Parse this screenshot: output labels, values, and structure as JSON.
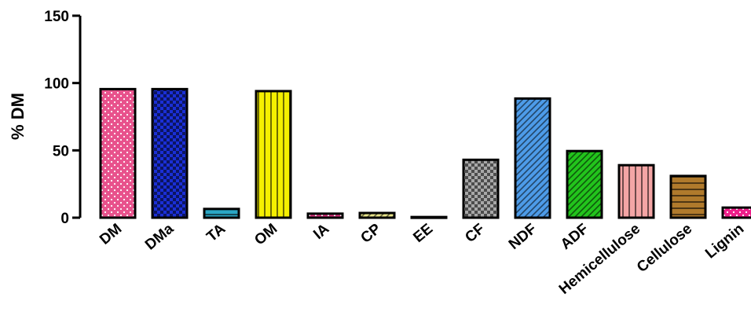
{
  "chart_data": {
    "type": "bar",
    "title": "",
    "xlabel": "",
    "ylabel": "% DM",
    "ylim": [
      0,
      150
    ],
    "yticks": [
      0,
      50,
      100,
      150
    ],
    "grid": false,
    "categories": [
      "DM",
      "DMa",
      "TA",
      "OM",
      "IA",
      "CP",
      "EE",
      "CF",
      "NDF",
      "ADF",
      "Hemicellulose",
      "Cellulose",
      "Lignin"
    ],
    "values": [
      95.5,
      95.5,
      6.5,
      94,
      3,
      3.5,
      0.5,
      43,
      88.5,
      49.5,
      39,
      31,
      7.5
    ],
    "colors": [
      "#e8528c",
      "#1a2fd6",
      "#2aa6c4",
      "#f5f000",
      "#d4307a",
      "#e8e48a",
      "#9a9a9a",
      "#a8a8a8",
      "#4d9be8",
      "#22c41c",
      "#f4a5a5",
      "#b07a2c",
      "#ee1f8a"
    ],
    "patterns": [
      "dots",
      "checker",
      "hstripes",
      "vstripes",
      "dots",
      "diagonal",
      "hstripes",
      "checker",
      "diagonal",
      "diagonal",
      "vstripes",
      "hstripes",
      "dots"
    ]
  }
}
